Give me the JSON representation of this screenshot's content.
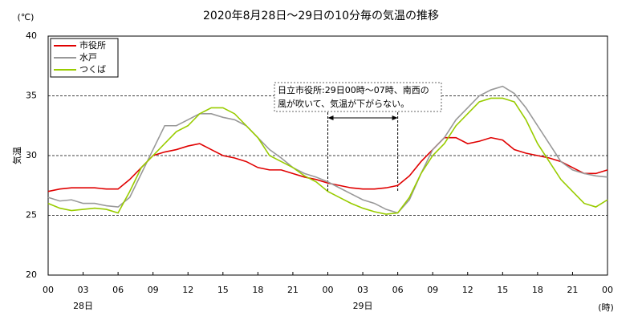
{
  "chart_data": {
    "type": "line",
    "title": "2020年8月28日～29日の10分毎の気温の推移",
    "y_unit": "(℃)",
    "y_label": "気温",
    "x_unit": "(時)",
    "x": [
      0,
      1,
      2,
      3,
      4,
      5,
      6,
      7,
      8,
      9,
      10,
      11,
      12,
      13,
      14,
      15,
      16,
      17,
      18,
      19,
      20,
      21,
      22,
      23,
      24,
      25,
      26,
      27,
      28,
      29,
      30,
      31,
      32,
      33,
      34,
      35,
      36,
      37,
      38,
      39,
      40,
      41,
      42,
      43,
      44,
      45,
      46,
      47,
      48
    ],
    "series": [
      {
        "name": "市役所",
        "color": "#e00000",
        "values": [
          27.0,
          27.2,
          27.3,
          27.3,
          27.3,
          27.2,
          27.2,
          28.0,
          29.0,
          30.0,
          30.3,
          30.5,
          30.8,
          31.0,
          30.5,
          30.0,
          29.8,
          29.5,
          29.0,
          28.8,
          28.8,
          28.5,
          28.2,
          28.0,
          27.7,
          27.5,
          27.3,
          27.2,
          27.2,
          27.3,
          27.5,
          28.3,
          29.5,
          30.5,
          31.5,
          31.5,
          31.0,
          31.2,
          31.5,
          31.3,
          30.5,
          30.2,
          30.0,
          29.8,
          29.5,
          29.0,
          28.5,
          28.5,
          28.8
        ]
      },
      {
        "name": "水戸",
        "color": "#999999",
        "values": [
          26.5,
          26.2,
          26.3,
          26.0,
          26.0,
          25.8,
          25.7,
          26.5,
          28.5,
          30.5,
          32.5,
          32.5,
          33.0,
          33.5,
          33.5,
          33.2,
          33.0,
          32.5,
          31.5,
          30.5,
          29.8,
          29.0,
          28.5,
          28.2,
          27.8,
          27.3,
          26.8,
          26.3,
          26.0,
          25.5,
          25.2,
          26.3,
          28.5,
          30.5,
          31.5,
          33.0,
          34.0,
          35.0,
          35.5,
          35.8,
          35.2,
          34.0,
          32.5,
          31.0,
          29.5,
          28.8,
          28.5,
          28.3,
          28.2
        ]
      },
      {
        "name": "つくば",
        "color": "#99cc00",
        "values": [
          26.0,
          25.6,
          25.4,
          25.5,
          25.6,
          25.5,
          25.2,
          27.0,
          29.0,
          30.0,
          31.0,
          32.0,
          32.5,
          33.5,
          34.0,
          34.0,
          33.5,
          32.5,
          31.5,
          30.0,
          29.5,
          29.0,
          28.3,
          27.8,
          27.0,
          26.5,
          26.0,
          25.6,
          25.3,
          25.1,
          25.2,
          26.5,
          28.5,
          30.0,
          31.0,
          32.5,
          33.5,
          34.5,
          34.8,
          34.8,
          34.5,
          33.0,
          31.0,
          29.5,
          28.0,
          27.0,
          26.0,
          25.7,
          26.3
        ]
      }
    ],
    "xlim": [
      0,
      48
    ],
    "xticks": [
      {
        "value": 0,
        "label": "00"
      },
      {
        "value": 3,
        "label": "03"
      },
      {
        "value": 6,
        "label": "06"
      },
      {
        "value": 9,
        "label": "09"
      },
      {
        "value": 12,
        "label": "12"
      },
      {
        "value": 15,
        "label": "15"
      },
      {
        "value": 18,
        "label": "18"
      },
      {
        "value": 21,
        "label": "21"
      },
      {
        "value": 24,
        "label": "00"
      },
      {
        "value": 27,
        "label": "03"
      },
      {
        "value": 30,
        "label": "06"
      },
      {
        "value": 33,
        "label": "09"
      },
      {
        "value": 36,
        "label": "12"
      },
      {
        "value": 39,
        "label": "15"
      },
      {
        "value": 42,
        "label": "18"
      },
      {
        "value": 45,
        "label": "21"
      },
      {
        "value": 48,
        "label": "00"
      }
    ],
    "date_labels": [
      {
        "value": 3,
        "label": "28日"
      },
      {
        "value": 27,
        "label": "29日"
      }
    ],
    "ylim": [
      20,
      40
    ],
    "yticks": [
      20,
      25,
      30,
      35,
      40
    ],
    "grid": true,
    "legend": "upper left",
    "annotation": {
      "lines": [
        "日立市役所:29日00時～07時、南西の",
        "風が吹いて、気温が下がらない。"
      ],
      "x_range": [
        24,
        30
      ]
    }
  }
}
